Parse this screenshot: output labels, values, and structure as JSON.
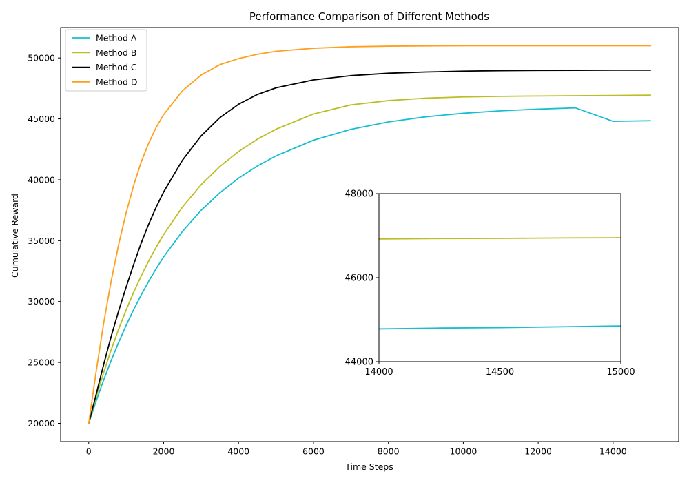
{
  "chart_data": [
    {
      "type": "line",
      "title": "Performance Comparison of Different Methods",
      "xlabel": "Time Steps",
      "ylabel": "Cumulative Reward",
      "xlim": [
        -750,
        15750
      ],
      "ylim": [
        18500,
        52500
      ],
      "xticks": [
        0,
        2000,
        4000,
        6000,
        8000,
        10000,
        12000,
        14000
      ],
      "yticks": [
        20000,
        25000,
        30000,
        35000,
        40000,
        45000,
        50000
      ],
      "grid": false,
      "legend": "top-left",
      "x": [
        0,
        200,
        400,
        600,
        800,
        1000,
        1200,
        1400,
        1600,
        1800,
        2000,
        2500,
        3000,
        3500,
        4000,
        4500,
        5000,
        6000,
        7000,
        8000,
        9000,
        10000,
        11000,
        12000,
        13000,
        14000,
        15000
      ],
      "series": [
        {
          "name": "Method A",
          "color": "#17becf",
          "values": [
            20000,
            21850,
            23570,
            25170,
            26660,
            28050,
            29340,
            30540,
            31660,
            32700,
            33670,
            35750,
            37490,
            38930,
            40130,
            41130,
            41960,
            43250,
            44140,
            44750,
            45170,
            45460,
            45660,
            45800,
            45900,
            44800,
            44850
          ]
        },
        {
          "name": "Method B",
          "color": "#bcbd22",
          "values": [
            20000,
            22180,
            24190,
            26040,
            27750,
            29320,
            30770,
            32100,
            33330,
            34460,
            35500,
            37750,
            39590,
            41090,
            42320,
            43330,
            44150,
            45400,
            46150,
            46500,
            46700,
            46800,
            46850,
            46880,
            46900,
            46920,
            46950
          ]
        },
        {
          "name": "Method C",
          "color": "#000000",
          "values": [
            20000,
            22400,
            24850,
            27150,
            29250,
            31200,
            33050,
            34800,
            36350,
            37750,
            39000,
            41600,
            43600,
            45100,
            46200,
            47000,
            47550,
            48200,
            48550,
            48750,
            48850,
            48920,
            48960,
            48980,
            48990,
            49000,
            49000
          ]
        },
        {
          "name": "Method D",
          "color": "#ff9f1c",
          "values": [
            20000,
            24300,
            28250,
            31700,
            34700,
            37300,
            39550,
            41450,
            43000,
            44300,
            45350,
            47300,
            48600,
            49450,
            49950,
            50300,
            50550,
            50800,
            50920,
            50970,
            50990,
            51000,
            51000,
            51000,
            51000,
            51000,
            51000
          ]
        }
      ]
    },
    {
      "type": "line",
      "title": "",
      "xlabel": "",
      "ylabel": "",
      "xlim": [
        14000,
        15000
      ],
      "ylim": [
        44000,
        48000
      ],
      "xticks": [
        14000,
        14500,
        15000
      ],
      "yticks": [
        44000,
        46000,
        48000
      ],
      "grid": false,
      "x": [
        14000,
        14250,
        14500,
        14750,
        15000
      ],
      "series": [
        {
          "name": "Method A",
          "color": "#17becf",
          "values": [
            44780,
            44800,
            44810,
            44830,
            44850
          ]
        },
        {
          "name": "Method B",
          "color": "#bcbd22",
          "values": [
            46920,
            46930,
            46935,
            46945,
            46950
          ]
        }
      ]
    }
  ]
}
